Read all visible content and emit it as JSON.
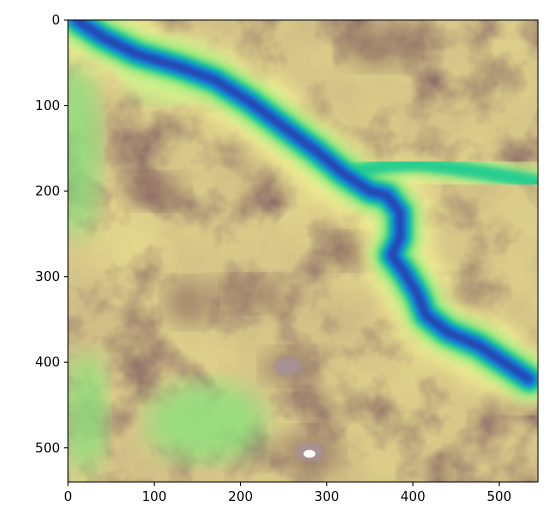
{
  "chart_data": {
    "type": "heatmap",
    "title": "",
    "xlabel": "",
    "ylabel": "",
    "image_size": [
      545,
      540
    ],
    "xlim": [
      0,
      545
    ],
    "ylim": [
      540,
      0
    ],
    "y_axis_inverted": true,
    "x_ticks": [
      0,
      100,
      200,
      300,
      400,
      500
    ],
    "y_ticks": [
      0,
      100,
      200,
      300,
      400,
      500
    ],
    "grid": false,
    "legend": "none",
    "colormap": "terrain",
    "colormap_stops": [
      "#333399",
      "#0d7ee8",
      "#1ccb93",
      "#80e47a",
      "#fefe98",
      "#cbb784",
      "#805c5c",
      "#a9939b",
      "#ffffff"
    ],
    "features": {
      "river_channel_path": [
        [
          10,
          0
        ],
        [
          40,
          20
        ],
        [
          80,
          40
        ],
        [
          130,
          55
        ],
        [
          170,
          70
        ],
        [
          210,
          95
        ],
        [
          250,
          125
        ],
        [
          290,
          155
        ],
        [
          320,
          180
        ],
        [
          350,
          200
        ],
        [
          370,
          205
        ],
        [
          385,
          225
        ],
        [
          385,
          255
        ],
        [
          375,
          275
        ],
        [
          390,
          295
        ],
        [
          405,
          320
        ],
        [
          415,
          345
        ],
        [
          440,
          365
        ],
        [
          475,
          380
        ],
        [
          505,
          400
        ],
        [
          535,
          420
        ]
      ],
      "upper_branch_path": [
        [
          320,
          180
        ],
        [
          345,
          175
        ],
        [
          370,
          170
        ],
        [
          405,
          168
        ],
        [
          440,
          172
        ],
        [
          480,
          178
        ],
        [
          520,
          185
        ],
        [
          545,
          190
        ]
      ],
      "high_ground_centers": [
        [
          255,
          405
        ],
        [
          280,
          505
        ],
        [
          210,
          320
        ],
        [
          140,
          330
        ],
        [
          100,
          200
        ],
        [
          360,
          30
        ],
        [
          330,
          270
        ]
      ]
    }
  }
}
